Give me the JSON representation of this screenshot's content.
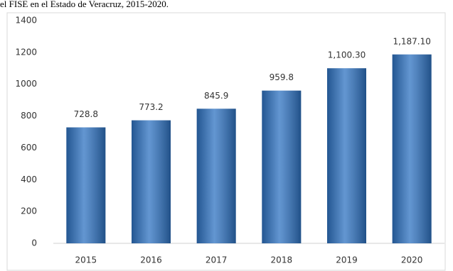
{
  "chart_data": {
    "type": "bar",
    "title": "el FISE en el Estado de Veracruz, 2015-2020.",
    "categories": [
      "2015",
      "2016",
      "2017",
      "2018",
      "2019",
      "2020"
    ],
    "values": [
      728.8,
      773.2,
      845.9,
      959.8,
      1100.3,
      1187.1
    ],
    "value_labels": [
      "728.8",
      "773.2",
      "845.9",
      "959.8",
      "1,100.30",
      "1,187.10"
    ],
    "color": "#2f73c2",
    "ylim": [
      0,
      1400
    ],
    "yticks": [
      0,
      200,
      400,
      600,
      800,
      1000,
      1200,
      1400
    ],
    "grid": false
  }
}
